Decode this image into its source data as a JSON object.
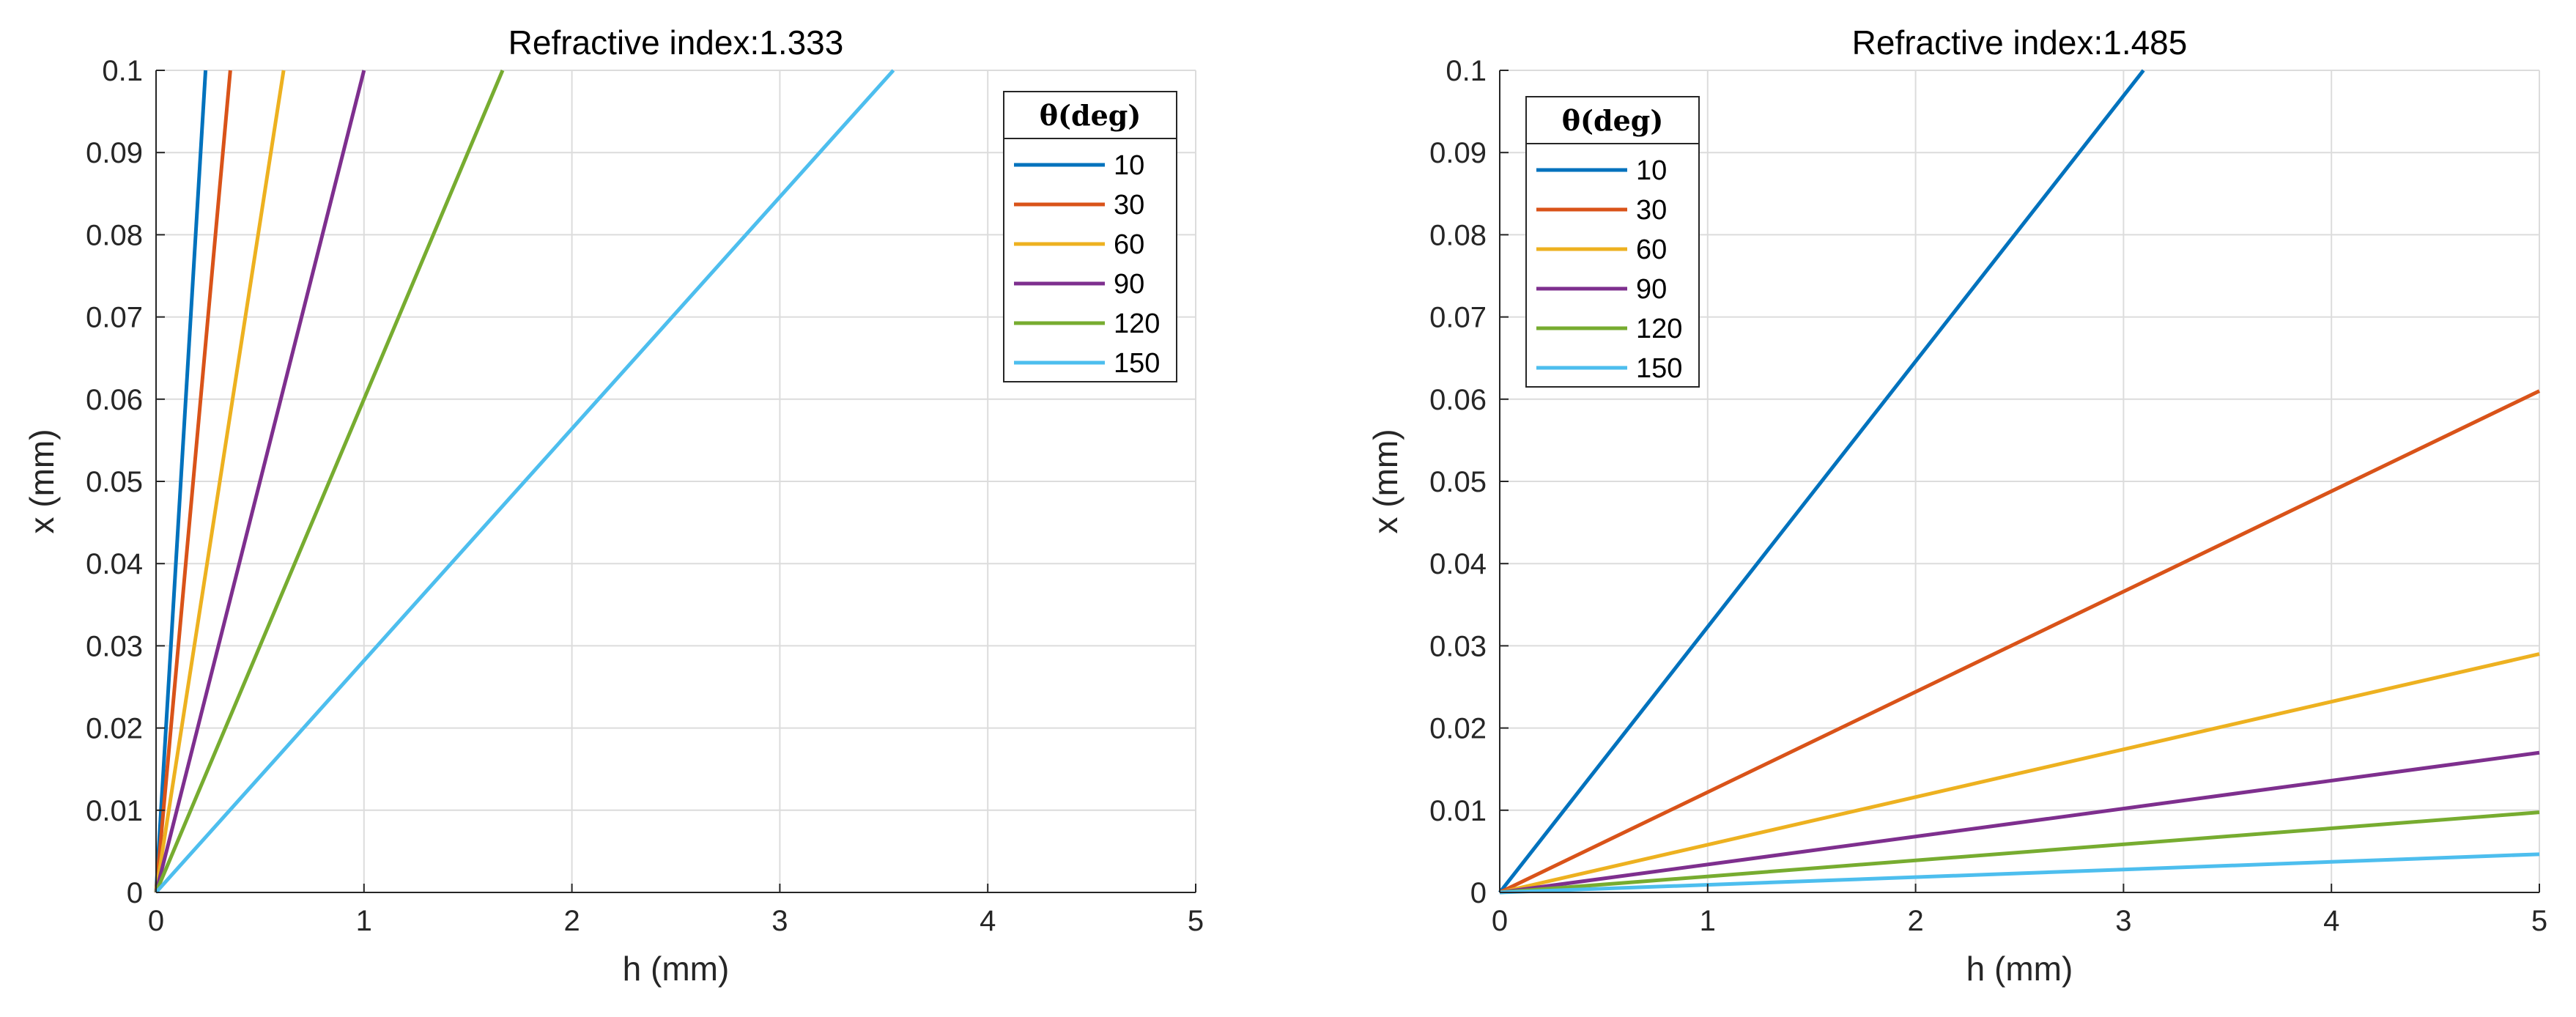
{
  "figure": "Deflection x versus height h for two refractive indices",
  "chart_data": [
    {
      "type": "line",
      "title": "Refractive index:1.333",
      "xlabel": "h (mm)",
      "ylabel": "x (mm)",
      "xlim": [
        0,
        5
      ],
      "ylim": [
        0,
        0.1
      ],
      "xticks": [
        "0",
        "1",
        "2",
        "3",
        "4",
        "5"
      ],
      "yticks": [
        "0",
        "0.01",
        "0.02",
        "0.03",
        "0.04",
        "0.05",
        "0.06",
        "0.07",
        "0.08",
        "0.09",
        "0.1"
      ],
      "grid": true,
      "legend_title": "θ(deg)",
      "legend_position": "top-right",
      "series": [
        {
          "name": "10",
          "color": "#0072BD",
          "slope": 0.42
        },
        {
          "name": "30",
          "color": "#D95319",
          "slope": 0.28
        },
        {
          "name": "60",
          "color": "#EDB120",
          "slope": 0.163
        },
        {
          "name": "90",
          "color": "#7E2F8E",
          "slope": 0.1
        },
        {
          "name": "120",
          "color": "#77AC30",
          "slope": 0.06
        },
        {
          "name": "150",
          "color": "#4DBEEE",
          "slope": 0.0282
        }
      ]
    },
    {
      "type": "line",
      "title": "Refractive index:1.485",
      "xlabel": "h (mm)",
      "ylabel": "x (mm)",
      "xlim": [
        0,
        5
      ],
      "ylim": [
        0,
        0.1
      ],
      "xticks": [
        "0",
        "1",
        "2",
        "3",
        "4",
        "5"
      ],
      "yticks": [
        "0",
        "0.01",
        "0.02",
        "0.03",
        "0.04",
        "0.05",
        "0.06",
        "0.07",
        "0.08",
        "0.09",
        "0.1"
      ],
      "grid": true,
      "legend_title": "θ(deg)",
      "legend_position": "top-left",
      "series": [
        {
          "name": "10",
          "color": "#0072BD",
          "slope": 0.0323
        },
        {
          "name": "30",
          "color": "#D95319",
          "slope": 0.0122
        },
        {
          "name": "60",
          "color": "#EDB120",
          "slope": 0.0058
        },
        {
          "name": "90",
          "color": "#7E2F8E",
          "slope": 0.0034
        },
        {
          "name": "120",
          "color": "#77AC30",
          "slope": 0.00195
        },
        {
          "name": "150",
          "color": "#4DBEEE",
          "slope": 0.00093
        }
      ]
    }
  ]
}
